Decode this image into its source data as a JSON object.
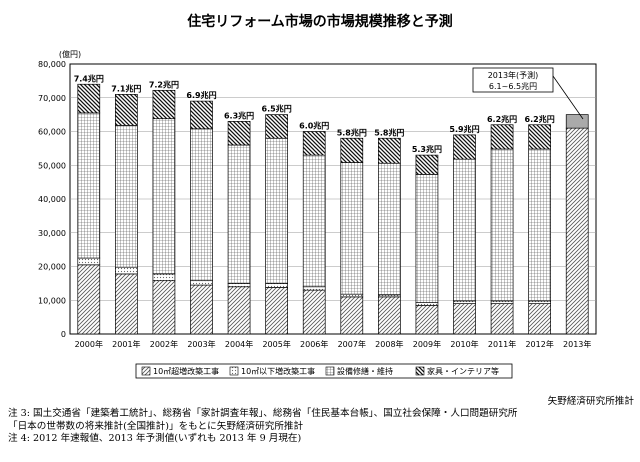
{
  "chart_data": {
    "type": "bar",
    "stacked": true,
    "title": "住宅リフォーム市場の市場規模推移と予測",
    "ylabel": "(億円)",
    "ylim": [
      0,
      80000
    ],
    "yticks": [
      0,
      10000,
      20000,
      30000,
      40000,
      50000,
      60000,
      70000,
      80000
    ],
    "ytick_labels": [
      "0",
      "10,000",
      "20,000",
      "30,000",
      "40,000",
      "50,000",
      "60,000",
      "70,000",
      "80,000"
    ],
    "grid": true,
    "categories": [
      "2000年",
      "2001年",
      "2002年",
      "2003年",
      "2004年",
      "2005年",
      "2006年",
      "2007年",
      "2008年",
      "2009年",
      "2010年",
      "2011年",
      "2012年",
      "2013年"
    ],
    "series": [
      {
        "name": "10㎡超増改築工事",
        "pattern": "diagonal",
        "values": [
          20500,
          17800,
          15800,
          14500,
          14000,
          13800,
          13000,
          11000,
          11000,
          8500,
          9000,
          9000,
          9000,
          null
        ]
      },
      {
        "name": "10㎡以下増改築工事",
        "pattern": "dots",
        "values": [
          2000,
          2000,
          2000,
          1300,
          1000,
          1200,
          1000,
          800,
          600,
          800,
          800,
          800,
          800,
          null
        ]
      },
      {
        "name": "設備修繕・維持",
        "pattern": "grid",
        "values": [
          43000,
          42000,
          46000,
          45000,
          41000,
          43000,
          39000,
          39000,
          39000,
          38000,
          42000,
          45000,
          45000,
          null
        ]
      },
      {
        "name": "家具・インテリア等",
        "pattern": "hatch",
        "values": [
          8500,
          9200,
          8400,
          8200,
          7000,
          7000,
          7000,
          7200,
          7400,
          5700,
          7200,
          7200,
          7200,
          null
        ]
      }
    ],
    "forecast": {
      "category": "2013年",
      "low": 61000,
      "high": 65000
    },
    "data_labels": [
      "7.4兆円",
      "7.1兆円",
      "7.2兆円",
      "6.9兆円",
      "6.3兆円",
      "6.5兆円",
      "6.0兆円",
      "5.8兆円",
      "5.8兆円",
      "5.3兆円",
      "5.9兆円",
      "6.2兆円",
      "6.2兆円",
      ""
    ],
    "callout": {
      "line1": "2013年(予測)",
      "line2": "6.1~6.5兆円"
    },
    "legend_position": "bottom"
  },
  "notes": {
    "source": "矢野経済研究所推計",
    "note3_line1": "注 3: 国土交通省「建築着工統計」、総務省「家計調査年報」、総務省「住民基本台帳」、国立社会保障・人口問題研究所",
    "note3_line2": "「日本の世帯数の将来推計(全国推計)」をもとに矢野経済研究所推計",
    "note4": "注 4: 2012 年速報値、2013 年予測値(いずれも 2013 年 9 月現在)"
  }
}
